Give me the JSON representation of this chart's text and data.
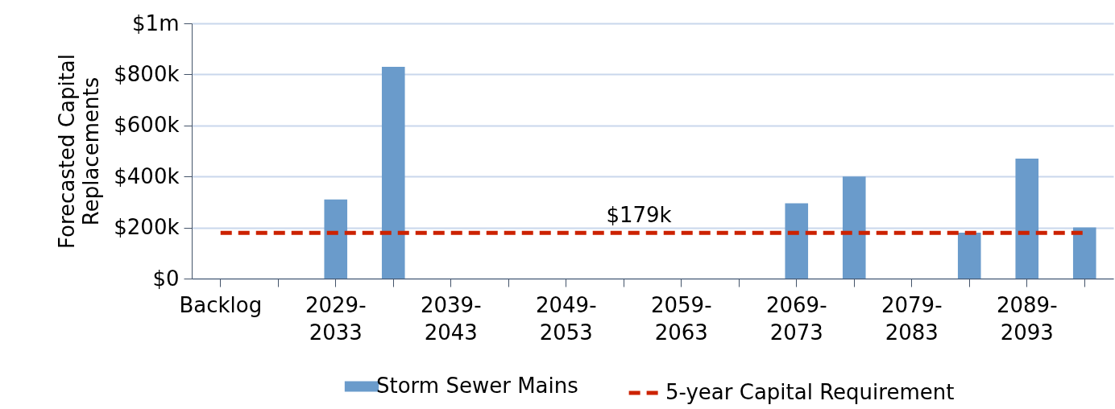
{
  "chart_data": {
    "type": "bar",
    "ylabel": "Forecasted Capital Replacements",
    "categories": [
      "Backlog",
      null,
      "2029-2033",
      null,
      "2039-2043",
      null,
      "2049-2053",
      null,
      "2059-2063",
      null,
      "2069-2073",
      null,
      "2079-2083",
      null,
      "2089-2093",
      null
    ],
    "series": [
      {
        "name": "Storm Sewer Mains",
        "color": "#6a9bcb",
        "values": [
          0,
          0,
          310000,
          830000,
          0,
          0,
          0,
          0,
          0,
          0,
          295000,
          400000,
          0,
          180000,
          470000,
          200000
        ]
      },
      {
        "name": "5-year Capital Requirement",
        "type": "line",
        "color": "#cc2200",
        "line_style": "dashed",
        "values": [
          179000,
          179000,
          179000,
          179000,
          179000,
          179000,
          179000,
          179000,
          179000,
          179000,
          179000,
          179000,
          179000,
          179000,
          179000,
          179000
        ]
      }
    ],
    "annotations": [
      {
        "text": "$179k",
        "y": 179000
      }
    ],
    "ylim": [
      0,
      1000000
    ],
    "yticks": [
      {
        "value": 0,
        "label": "$0"
      },
      {
        "value": 200000,
        "label": "$200k"
      },
      {
        "value": 400000,
        "label": "$400k"
      },
      {
        "value": 600000,
        "label": "$600k"
      },
      {
        "value": 800000,
        "label": "$800k"
      },
      {
        "value": 1000000,
        "label": "$1m"
      }
    ],
    "grid": "y",
    "legend": "bottom"
  }
}
